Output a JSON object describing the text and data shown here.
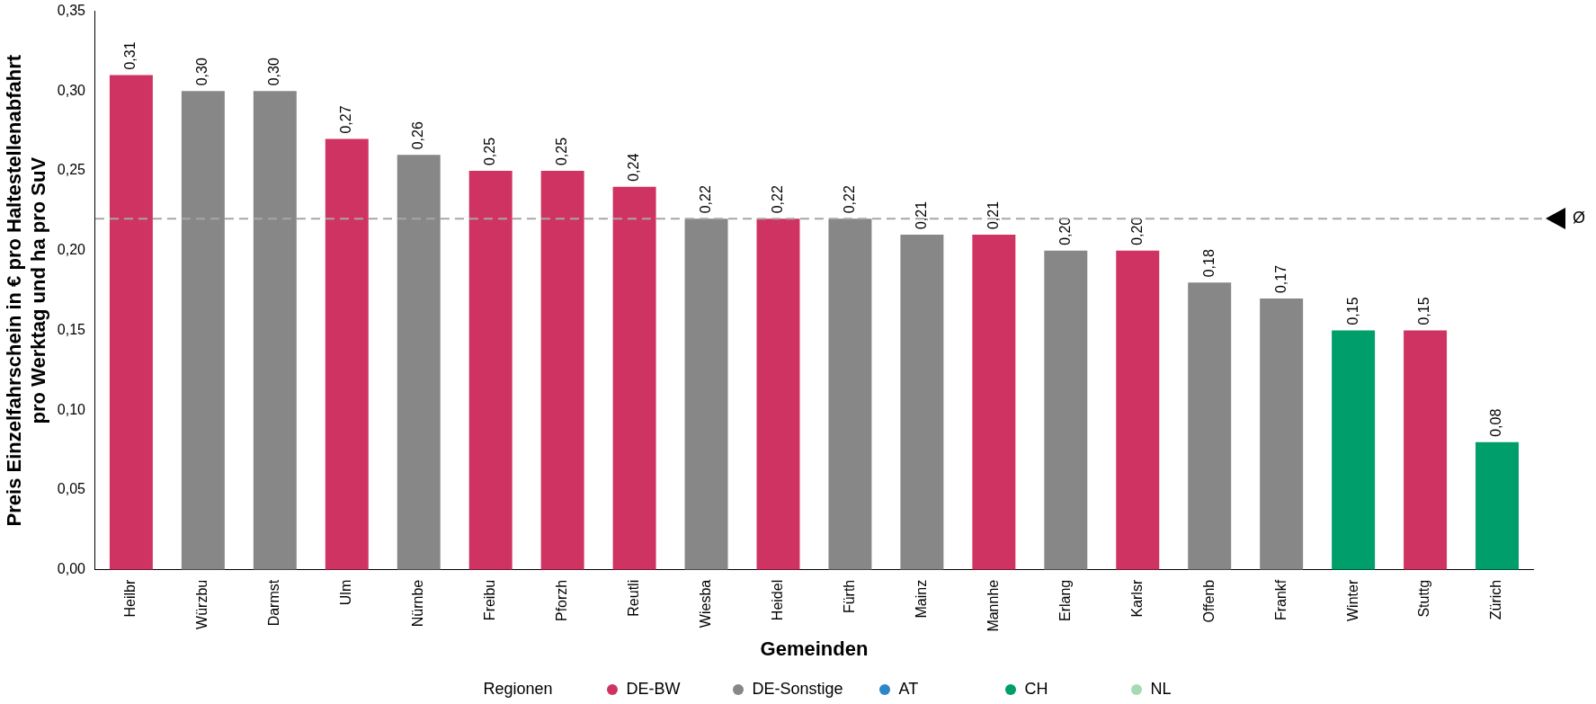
{
  "chart_data": {
    "type": "bar",
    "stacked": true,
    "xlabel": "Gemeinden",
    "ylabel": "Preis Einzelfahrschein in € pro Haltestellenabfahrt\npro Werktag und ha pro SuV",
    "legend_title": "Regionen",
    "legend": "bottom",
    "categories": [
      "Heilbr",
      "Würzbu",
      "Darmst",
      "Ulm",
      "Nürnbe",
      "Freibu",
      "Pforzh",
      "Reutli",
      "Wiesba",
      "Heidel",
      "Fürth",
      "Mainz",
      "Mannhe",
      "Erlang",
      "Karlsr",
      "Offenb",
      "Frankf",
      "Winter",
      "Stuttg",
      "Zürich"
    ],
    "series": [
      {
        "name": "DE-BW",
        "color": "#cf3361",
        "values": [
          0.31,
          null,
          null,
          0.27,
          null,
          0.25,
          0.25,
          0.24,
          null,
          0.22,
          null,
          null,
          0.21,
          null,
          0.2,
          null,
          null,
          null,
          0.15,
          null
        ],
        "value_labels": [
          "0,31",
          null,
          null,
          "0,27",
          null,
          "0,25",
          "0,25",
          "0,24",
          null,
          "0,22",
          null,
          null,
          "0,21",
          null,
          "0,20",
          null,
          null,
          null,
          "0,15",
          null
        ]
      },
      {
        "name": "DE-Sonstige",
        "color": "#878787",
        "values": [
          null,
          0.3,
          0.3,
          null,
          0.26,
          null,
          null,
          null,
          0.22,
          null,
          0.22,
          0.21,
          null,
          0.2,
          null,
          0.18,
          0.17,
          null,
          null,
          null
        ],
        "value_labels": [
          null,
          "0,30",
          "0,30",
          null,
          "0,26",
          null,
          null,
          null,
          "0,22",
          null,
          "0,22",
          "0,21",
          null,
          "0,20",
          null,
          "0,18",
          "0,17",
          null,
          null,
          null
        ]
      },
      {
        "name": "AT",
        "color": "#2c86c8",
        "values": [
          null,
          null,
          null,
          null,
          null,
          null,
          null,
          null,
          null,
          null,
          null,
          null,
          null,
          null,
          null,
          null,
          null,
          null,
          null,
          null
        ]
      },
      {
        "name": "CH",
        "color": "#009e6a",
        "values": [
          null,
          null,
          null,
          null,
          null,
          null,
          null,
          null,
          null,
          null,
          null,
          null,
          null,
          null,
          null,
          null,
          null,
          0.15,
          null,
          0.08
        ],
        "value_labels": [
          null,
          null,
          null,
          null,
          null,
          null,
          null,
          null,
          null,
          null,
          null,
          null,
          null,
          null,
          null,
          null,
          null,
          "0,15",
          null,
          "0,08"
        ]
      },
      {
        "name": "NL",
        "color": "#a6dab4",
        "values": [
          null,
          null,
          null,
          null,
          null,
          null,
          null,
          null,
          null,
          null,
          null,
          null,
          null,
          null,
          null,
          null,
          null,
          null,
          null,
          null
        ]
      }
    ],
    "ylim": [
      0,
      0.35
    ],
    "yticks": [
      {
        "value": 0,
        "label": "0,00"
      },
      {
        "value": 0.05,
        "label": "0,05"
      },
      {
        "value": 0.1,
        "label": "0,10"
      },
      {
        "value": 0.15,
        "label": "0,15"
      },
      {
        "value": 0.2,
        "label": "0,20"
      },
      {
        "value": 0.25,
        "label": "0,25"
      },
      {
        "value": 0.3,
        "label": "0,30"
      },
      {
        "value": 0.35,
        "label": "0,35"
      }
    ],
    "grid": false,
    "ref_lines": [
      {
        "axis": "y",
        "value": 0.22,
        "label": "Ø",
        "color": "#a6a6a6",
        "line_style": "dashed"
      }
    ]
  }
}
